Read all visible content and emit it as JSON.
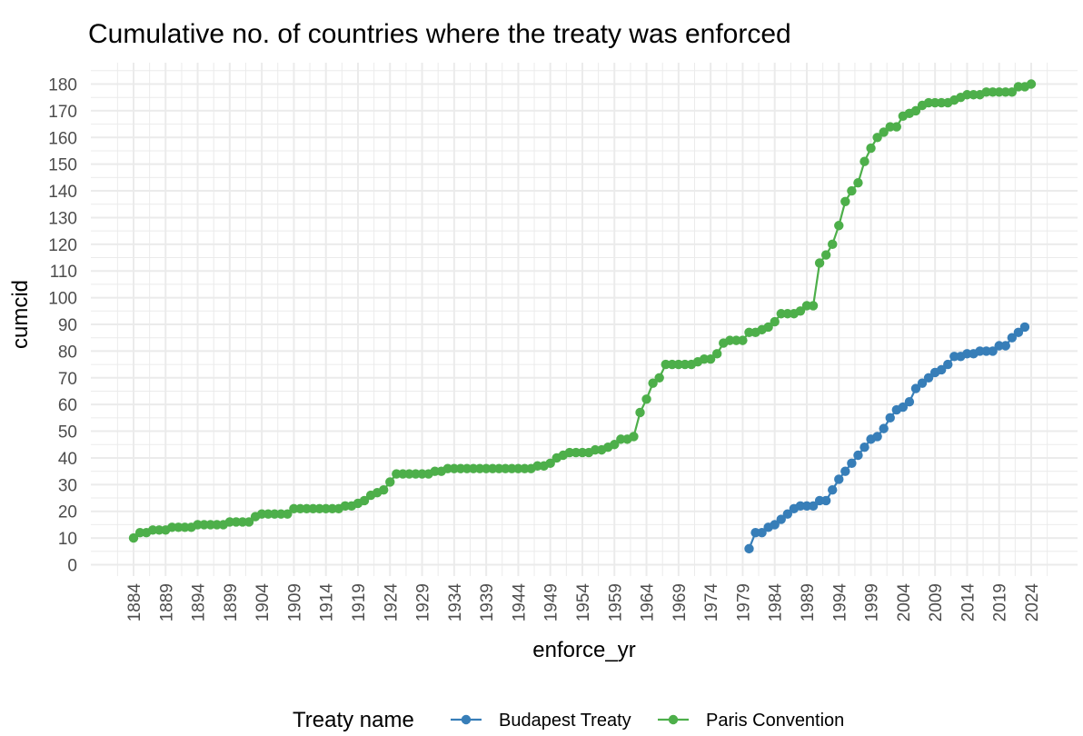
{
  "chart_data": {
    "type": "line",
    "title": "Cumulative no. of countries where the treaty was enforced",
    "xlabel": "enforce_yr",
    "ylabel": "cumcid",
    "xlim": [
      1880.6,
      2026.4
    ],
    "ylim": [
      0,
      180
    ],
    "x_ticks": [
      1884,
      1889,
      1894,
      1899,
      1904,
      1909,
      1914,
      1919,
      1924,
      1929,
      1934,
      1939,
      1944,
      1949,
      1954,
      1959,
      1964,
      1969,
      1974,
      1979,
      1984,
      1989,
      1994,
      1999,
      2004,
      2009,
      2014,
      2019,
      2024
    ],
    "y_ticks": [
      0,
      10,
      20,
      30,
      40,
      50,
      60,
      70,
      80,
      90,
      100,
      110,
      120,
      130,
      140,
      150,
      160,
      170,
      180
    ],
    "grid": true,
    "legend": {
      "title": "Treaty name",
      "position": "bottom"
    },
    "series": [
      {
        "name": "Budapest Treaty",
        "color": "#377eb8",
        "x": [
          1980,
          1981,
          1982,
          1983,
          1984,
          1985,
          1986,
          1987,
          1988,
          1989,
          1990,
          1991,
          1992,
          1993,
          1994,
          1995,
          1996,
          1997,
          1998,
          1999,
          2000,
          2001,
          2002,
          2003,
          2004,
          2005,
          2006,
          2007,
          2008,
          2009,
          2010,
          2011,
          2012,
          2013,
          2014,
          2015,
          2016,
          2017,
          2018,
          2019,
          2020,
          2021,
          2022,
          2023
        ],
        "y": [
          6,
          12,
          12,
          14,
          15,
          17,
          19,
          21,
          22,
          22,
          22,
          24,
          24,
          28,
          32,
          35,
          38,
          41,
          44,
          47,
          48,
          51,
          55,
          58,
          59,
          61,
          66,
          68,
          70,
          72,
          73,
          75,
          78,
          78,
          79,
          79,
          80,
          80,
          80,
          82,
          82,
          85,
          87,
          89
        ]
      },
      {
        "name": "Paris Convention",
        "color": "#4daf4a",
        "x": [
          1884,
          1885,
          1886,
          1887,
          1888,
          1889,
          1890,
          1891,
          1892,
          1893,
          1894,
          1895,
          1896,
          1897,
          1898,
          1899,
          1900,
          1901,
          1902,
          1903,
          1904,
          1905,
          1906,
          1907,
          1908,
          1909,
          1910,
          1911,
          1912,
          1913,
          1914,
          1915,
          1916,
          1917,
          1918,
          1919,
          1920,
          1921,
          1922,
          1923,
          1924,
          1925,
          1926,
          1927,
          1928,
          1929,
          1930,
          1931,
          1932,
          1933,
          1934,
          1935,
          1936,
          1937,
          1938,
          1939,
          1940,
          1941,
          1942,
          1943,
          1944,
          1945,
          1946,
          1947,
          1948,
          1949,
          1950,
          1951,
          1952,
          1953,
          1954,
          1955,
          1956,
          1957,
          1958,
          1959,
          1960,
          1961,
          1962,
          1963,
          1964,
          1965,
          1966,
          1967,
          1968,
          1969,
          1970,
          1971,
          1972,
          1973,
          1974,
          1975,
          1976,
          1977,
          1978,
          1979,
          1980,
          1981,
          1982,
          1983,
          1984,
          1985,
          1986,
          1987,
          1988,
          1989,
          1990,
          1991,
          1992,
          1993,
          1994,
          1995,
          1996,
          1997,
          1998,
          1999,
          2000,
          2001,
          2002,
          2003,
          2004,
          2005,
          2006,
          2007,
          2008,
          2009,
          2010,
          2011,
          2012,
          2013,
          2014,
          2015,
          2016,
          2017,
          2018,
          2019,
          2020,
          2021,
          2022,
          2023,
          2024
        ],
        "y": [
          10,
          12,
          12,
          13,
          13,
          13,
          14,
          14,
          14,
          14,
          15,
          15,
          15,
          15,
          15,
          16,
          16,
          16,
          16,
          18,
          19,
          19,
          19,
          19,
          19,
          21,
          21,
          21,
          21,
          21,
          21,
          21,
          21,
          22,
          22,
          23,
          24,
          26,
          27,
          28,
          31,
          34,
          34,
          34,
          34,
          34,
          34,
          35,
          35,
          36,
          36,
          36,
          36,
          36,
          36,
          36,
          36,
          36,
          36,
          36,
          36,
          36,
          36,
          37,
          37,
          38,
          40,
          41,
          42,
          42,
          42,
          42,
          43,
          43,
          44,
          45,
          47,
          47,
          48,
          57,
          62,
          68,
          70,
          75,
          75,
          75,
          75,
          75,
          76,
          77,
          77,
          79,
          83,
          84,
          84,
          84,
          87,
          87,
          88,
          89,
          91,
          94,
          94,
          94,
          95,
          97,
          97,
          113,
          116,
          120,
          127,
          136,
          140,
          143,
          151,
          156,
          160,
          162,
          164,
          164,
          168,
          169,
          170,
          172,
          173,
          173,
          173,
          173,
          174,
          175,
          176,
          176,
          176,
          177,
          177,
          177,
          177,
          177,
          179,
          179,
          180
        ]
      }
    ]
  }
}
